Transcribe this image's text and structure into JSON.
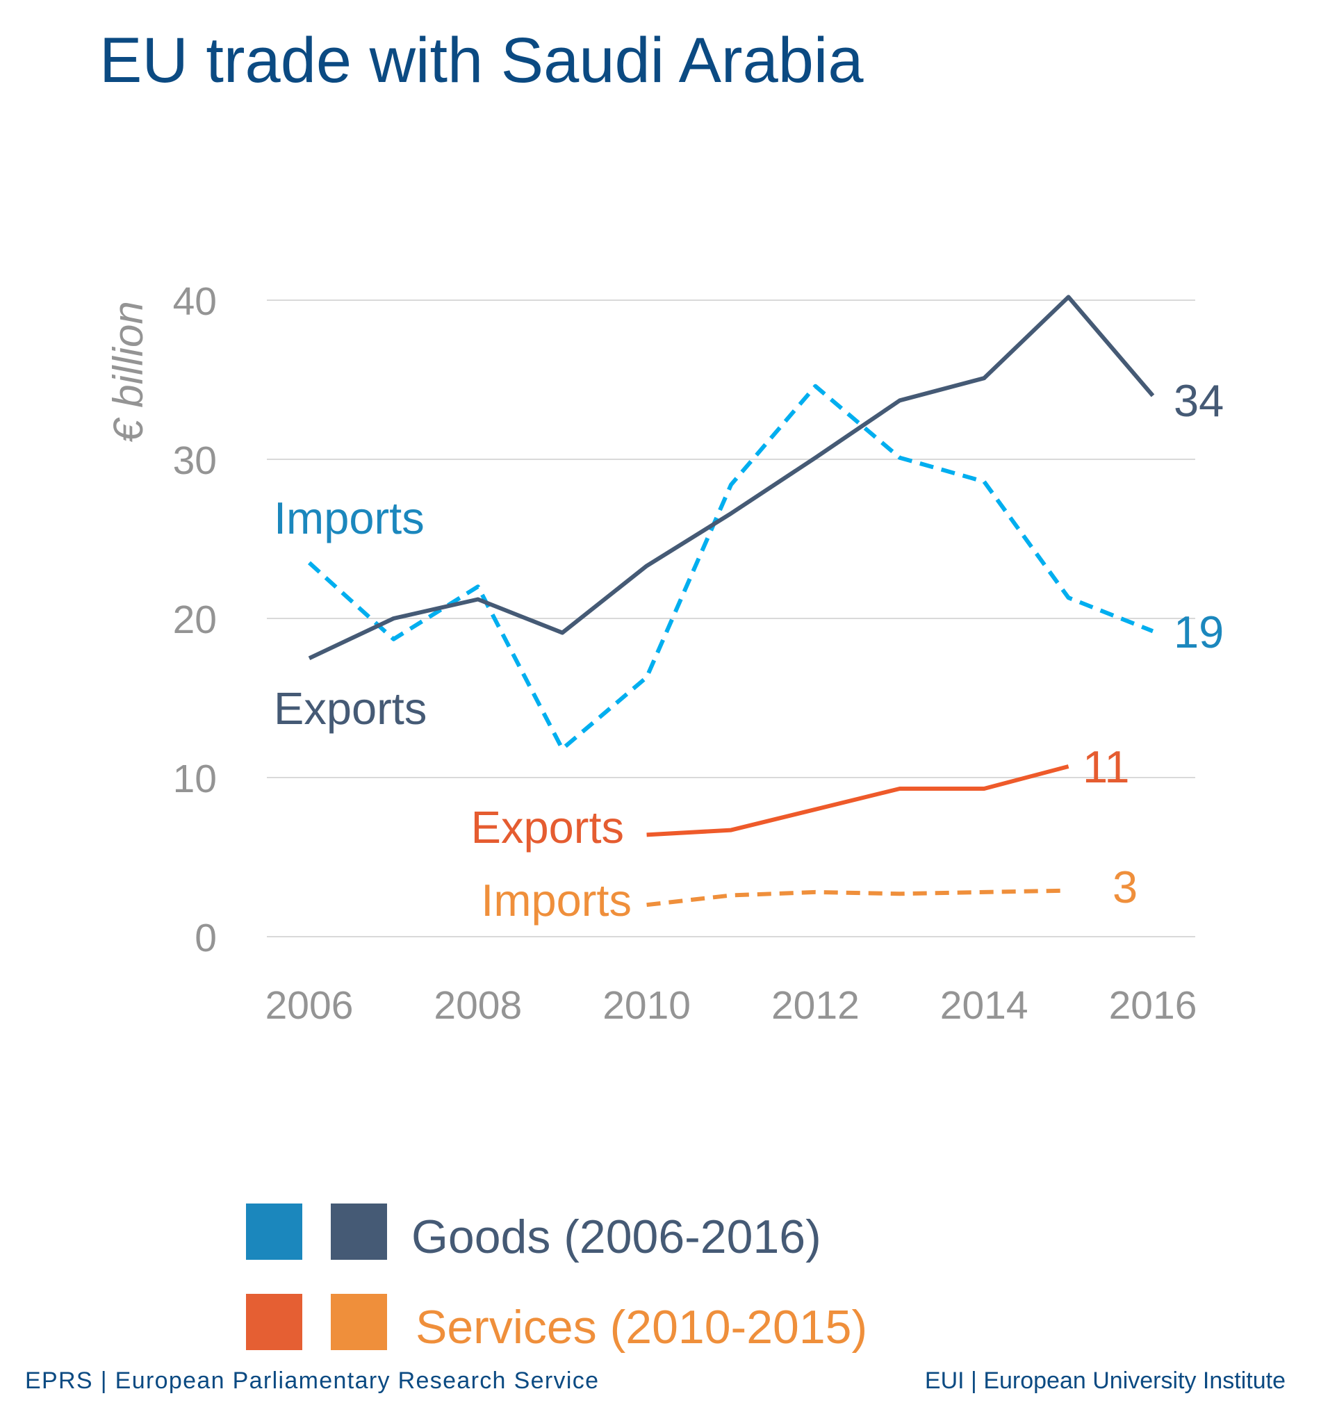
{
  "chart_data": {
    "type": "line",
    "title": "EU trade with Saudi Arabia",
    "ylabel": "€ billion",
    "xlabel": "",
    "ylim": [
      0,
      40
    ],
    "xlim": [
      2006,
      2016
    ],
    "yticks": [
      "0",
      "10",
      "20",
      "30",
      "40"
    ],
    "xticks": [
      "2006",
      "2008",
      "2010",
      "2012",
      "2014",
      "2016"
    ],
    "grid": true,
    "series": [
      {
        "key": "goods_imports",
        "label": "Imports",
        "end_label": "19",
        "color": "#00aeef",
        "label_color": "#1b87bd",
        "dashed": true,
        "x": [
          2006,
          2007,
          2008,
          2009,
          2010,
          2011,
          2012,
          2013,
          2014,
          2015,
          2016
        ],
        "values": [
          23.5,
          18.7,
          22.0,
          11.8,
          16.3,
          28.4,
          34.6,
          30.1,
          28.6,
          21.3,
          19.2
        ]
      },
      {
        "key": "goods_exports",
        "label": "Exports",
        "end_label": "34",
        "color": "#455a75",
        "label_color": "#455a75",
        "dashed": false,
        "x": [
          2006,
          2007,
          2008,
          2009,
          2010,
          2011,
          2012,
          2013,
          2014,
          2015,
          2016
        ],
        "values": [
          17.5,
          20.0,
          21.2,
          19.1,
          23.3,
          26.6,
          30.1,
          33.7,
          35.1,
          40.2,
          34.0
        ]
      },
      {
        "key": "services_exports",
        "label": "Exports",
        "end_label": "11",
        "color": "#ee5a2a",
        "label_color": "#e55c30",
        "dashed": false,
        "x": [
          2010,
          2011,
          2012,
          2013,
          2014,
          2015
        ],
        "values": [
          6.4,
          6.7,
          8.0,
          9.3,
          9.3,
          10.7
        ]
      },
      {
        "key": "services_imports",
        "label": "Imports",
        "end_label": "3",
        "color": "#ef8f3b",
        "label_color": "#ef8f3b",
        "dashed": true,
        "x": [
          2010,
          2011,
          2012,
          2013,
          2014,
          2015
        ],
        "values": [
          2.0,
          2.6,
          2.8,
          2.7,
          2.8,
          2.9
        ]
      }
    ],
    "legend": {
      "placement": "bottom",
      "items": [
        {
          "label": "Goods (2006-2016)",
          "colors": [
            "#1b87bd",
            "#455a75"
          ],
          "text_color": "#455a75"
        },
        {
          "label": "Services (2010-2015)",
          "colors": [
            "#e55f33",
            "#ef8f3b"
          ],
          "text_color": "#ef8f3b"
        }
      ]
    }
  },
  "footer": {
    "left": "EPRS | European Parliamentary Research Service",
    "right": "EUI | European University Institute"
  },
  "colors": {
    "title": "#0b4a82",
    "axis_text": "#949494",
    "grid": "#d9d9d9",
    "footer": "#0b4a82"
  }
}
